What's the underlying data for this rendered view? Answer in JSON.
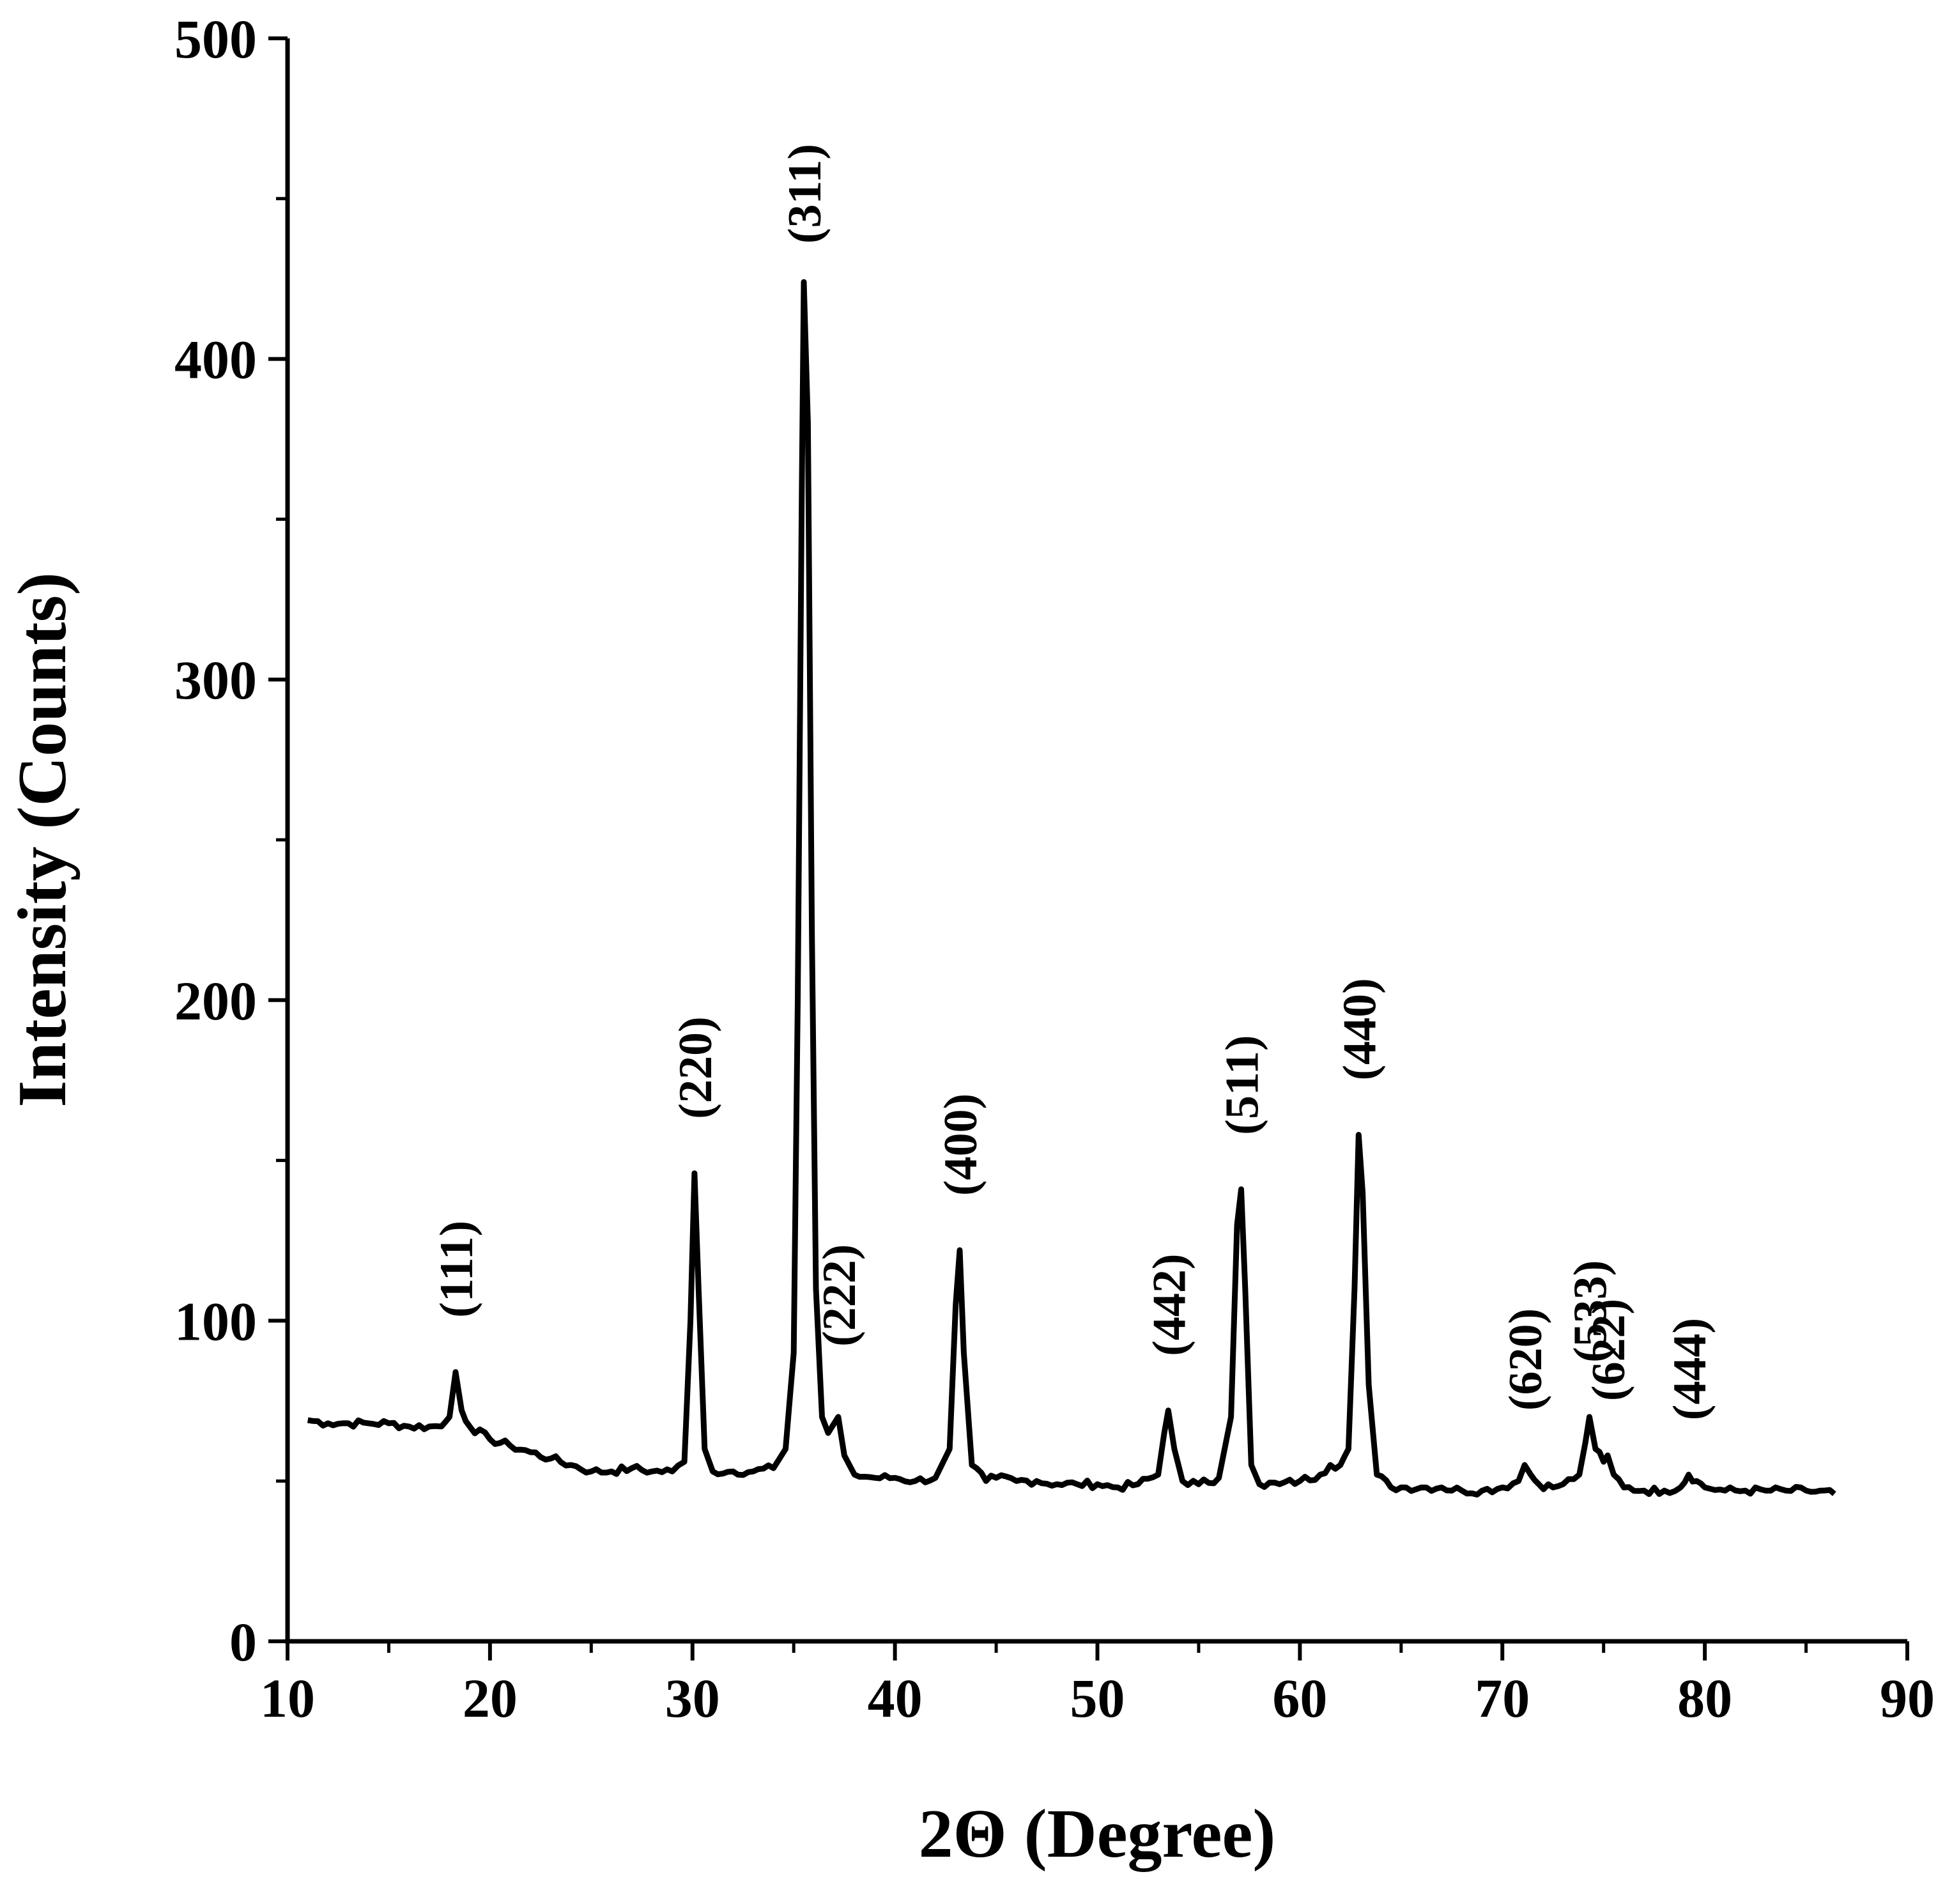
{
  "chart_data": {
    "type": "line",
    "title": "",
    "xlabel": "2Θ (Degree)",
    "ylabel": "Intensity (Counts)",
    "xlim": [
      10,
      90
    ],
    "ylim": [
      0,
      500
    ],
    "x_ticks": [
      "10",
      "20",
      "30",
      "40",
      "50",
      "60",
      "70",
      "80",
      "90"
    ],
    "y_ticks": [
      "0",
      "100",
      "200",
      "300",
      "400",
      "500"
    ],
    "grid": false,
    "legend": "none",
    "line_color": "#000000",
    "series": [
      {
        "x": [
          11.0,
          12,
          13,
          14,
          15,
          16,
          17,
          17.6,
          18.0,
          18.3,
          18.6,
          19.0,
          20,
          21,
          22,
          23,
          24,
          25,
          26,
          27,
          28,
          29,
          29.6,
          29.9,
          30.1,
          30.3,
          30.6,
          31,
          32,
          33,
          34,
          34.6,
          35.0,
          35.2,
          35.4,
          35.5,
          35.7,
          35.9,
          36.1,
          36.4,
          36.7,
          37.0,
          37.2,
          37.5,
          38,
          39,
          40,
          41,
          42,
          42.7,
          43.0,
          43.2,
          43.4,
          43.8,
          44.5,
          45,
          46,
          47,
          48,
          49,
          50,
          51,
          52,
          53,
          53.3,
          53.5,
          53.8,
          54.2,
          55,
          56,
          56.6,
          56.9,
          57.1,
          57.3,
          57.6,
          58,
          59,
          60,
          61,
          61.5,
          62,
          62.4,
          62.7,
          62.9,
          63.1,
          63.4,
          63.8,
          64.5,
          65,
          66,
          67,
          68,
          69,
          70,
          70.8,
          71.1,
          71.4,
          71.8,
          72.5,
          73,
          73.8,
          74.1,
          74.3,
          74.6,
          75.0,
          75.2,
          75.5,
          76,
          77,
          78,
          78.8,
          79.2,
          79.6,
          80,
          81,
          82,
          83,
          84,
          85,
          86.4
        ],
        "y": [
          69,
          68,
          68,
          68,
          68,
          67,
          67,
          67,
          70,
          84,
          72,
          67,
          63,
          61,
          59,
          57,
          55,
          53,
          53,
          54,
          53,
          53,
          56,
          100,
          146,
          110,
          60,
          53,
          53,
          53,
          54,
          60,
          90,
          200,
          360,
          424,
          380,
          220,
          110,
          70,
          65,
          68,
          70,
          58,
          52,
          51,
          51,
          50,
          51,
          60,
          105,
          122,
          90,
          55,
          50,
          51,
          50,
          50,
          49,
          49,
          49,
          48,
          49,
          52,
          65,
          72,
          60,
          50,
          49,
          51,
          70,
          130,
          141,
          110,
          55,
          49,
          49,
          50,
          52,
          55,
          55,
          60,
          110,
          158,
          140,
          80,
          52,
          48,
          48,
          48,
          48,
          47,
          47,
          48,
          50,
          55,
          52,
          49,
          48,
          49,
          52,
          62,
          70,
          60,
          56,
          58,
          52,
          48,
          47,
          47,
          48,
          52,
          50,
          48,
          47,
          47,
          47,
          47,
          47,
          46
        ]
      }
    ],
    "annotations": [
      {
        "text": "(111)",
        "x": 18.3,
        "y": 84
      },
      {
        "text": "(220)",
        "x": 30.1,
        "y": 146
      },
      {
        "text": "(311)",
        "x": 35.5,
        "y": 424
      },
      {
        "text": "(222)",
        "x": 37.2,
        "y": 70
      },
      {
        "text": "(400)",
        "x": 43.2,
        "y": 122
      },
      {
        "text": "(442)",
        "x": 53.5,
        "y": 72
      },
      {
        "text": "(511)",
        "x": 57.1,
        "y": 141
      },
      {
        "text": "(440)",
        "x": 62.9,
        "y": 158
      },
      {
        "text": "(620)",
        "x": 71.1,
        "y": 55
      },
      {
        "text": "(533)",
        "x": 74.3,
        "y": 70
      },
      {
        "text": "(622)",
        "x": 75.2,
        "y": 58
      },
      {
        "text": "(444)",
        "x": 79.2,
        "y": 52
      }
    ]
  }
}
